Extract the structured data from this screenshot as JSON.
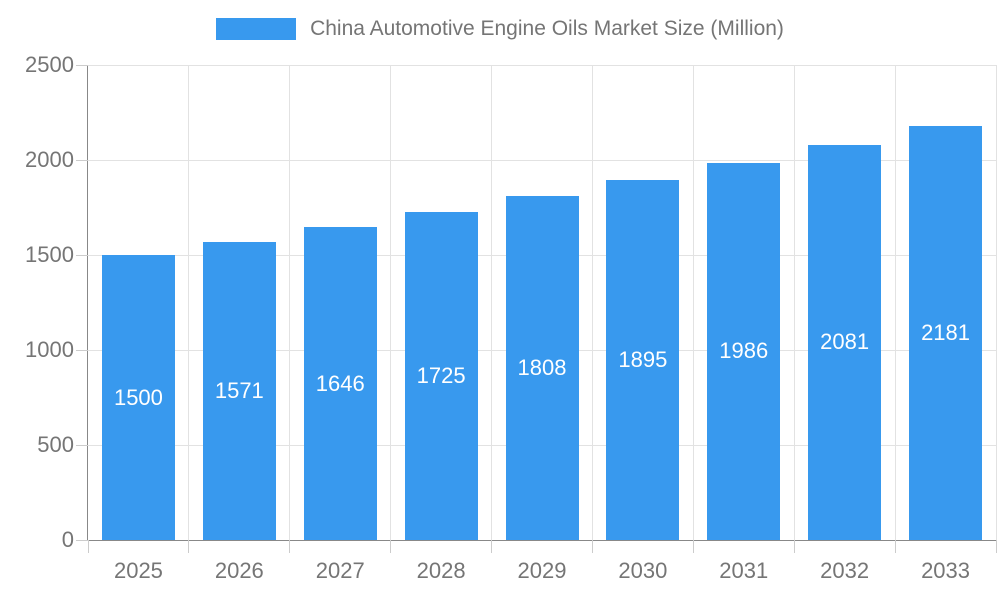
{
  "legend": {
    "label": "China Automotive Engine Oils Market Size (Million)",
    "swatch_color": "#3899EE"
  },
  "chart_data": {
    "type": "bar",
    "title": "",
    "xlabel": "",
    "ylabel": "",
    "categories": [
      "2025",
      "2026",
      "2027",
      "2028",
      "2029",
      "2030",
      "2031",
      "2032",
      "2033"
    ],
    "series": [
      {
        "name": "China Automotive Engine Oils Market Size (Million)",
        "values": [
          1500,
          1571,
          1646,
          1725,
          1808,
          1895,
          1986,
          2081,
          2181
        ],
        "color": "#3899EE"
      }
    ],
    "ylim": [
      0,
      2500
    ],
    "yticks": [
      0,
      500,
      1000,
      1500,
      2000,
      2500
    ],
    "grid": true,
    "legend_position": "top-center",
    "value_label_position": "inside-center",
    "value_label_color": "#FFFFFF"
  },
  "colors": {
    "bar": "#3899EE",
    "axis_line": "#888888",
    "gridline": "#E2E2E2",
    "tick_y": "#CCCCCC",
    "tick_x": "#CCCCCC",
    "axis_text": "#757575",
    "background": "#FFFFFF"
  }
}
